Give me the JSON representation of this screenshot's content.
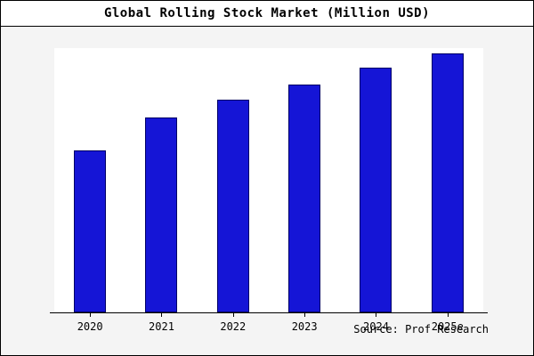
{
  "title": "Global Rolling Stock Market (Million USD)",
  "source_note": "Source: Prof Research",
  "colors": {
    "bar_fill": "#1515d6",
    "bar_border": "#000066",
    "background": "#f4f4f4",
    "plot_background": "#ffffff",
    "frame_border": "#000000"
  },
  "chart_data": {
    "type": "bar",
    "title": "Global Rolling Stock Market (Million USD)",
    "categories": [
      "2020",
      "2021",
      "2022",
      "2023",
      "2024",
      "2025e"
    ],
    "values": [
      62.5,
      75.3,
      82,
      88,
      94.3,
      100
    ],
    "value_unit": "relative (no y-axis labels shown; Million USD implied)",
    "xlabel": "",
    "ylabel": "",
    "ylim": [
      0,
      102
    ],
    "grid": false,
    "legend": false,
    "annotation": "Source: Prof Research"
  }
}
